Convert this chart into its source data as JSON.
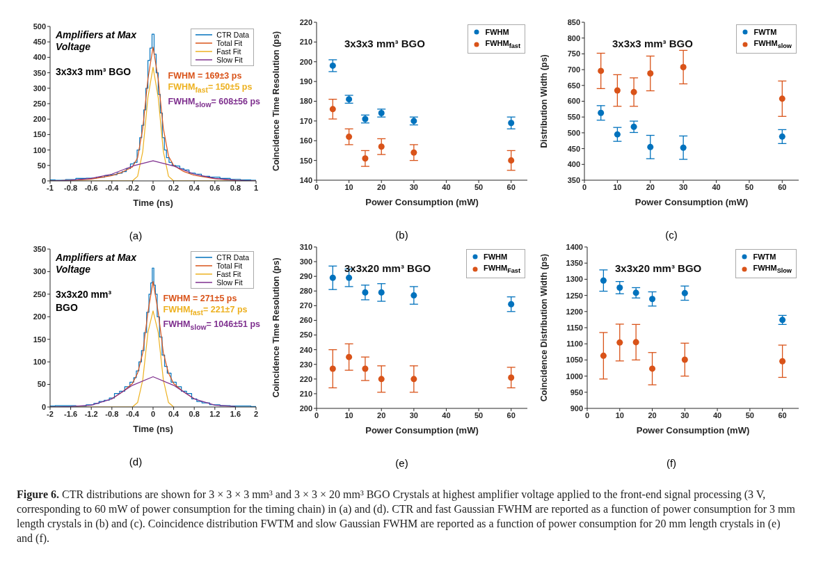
{
  "chart_data": [
    {
      "type": "line",
      "xlabel": "Time (ns)",
      "xlim": [
        -1,
        1
      ],
      "xticks": [
        -1,
        -0.8,
        -0.6,
        -0.4,
        -0.2,
        0,
        0.2,
        0.4,
        0.6,
        0.8,
        1
      ],
      "ylim": [
        0,
        500
      ],
      "yticks": [
        0,
        50,
        100,
        150,
        200,
        250,
        300,
        350,
        400,
        450,
        500
      ],
      "legend": "top right",
      "annotations": [
        "(a)",
        "Amplifiers at Max Voltage",
        "3x3x3 mm³ BGO",
        "FWHM = 169±3 ps",
        "FWHM$_{fast}$= 150±5 ps",
        "FWHM$_{slow}$= 608±56 ps"
      ],
      "series": [
        {
          "name": "CTR Data",
          "type": "step",
          "color": "#0072bd",
          "x": [
            -1,
            -0.9,
            -0.8,
            -0.7,
            -0.6,
            -0.5,
            -0.44,
            -0.38,
            -0.32,
            -0.28,
            -0.24,
            -0.2,
            -0.17,
            -0.14,
            -0.12,
            -0.1,
            -0.08,
            -0.06,
            -0.04,
            -0.02,
            0,
            0.02,
            0.04,
            0.06,
            0.08,
            0.1,
            0.12,
            0.14,
            0.17,
            0.2,
            0.24,
            0.28,
            0.32,
            0.38,
            0.44,
            0.5,
            0.6,
            0.7,
            0.8,
            0.9,
            1
          ],
          "values": [
            3,
            2,
            4,
            8,
            9,
            12,
            17,
            20,
            25,
            30,
            40,
            55,
            60,
            100,
            140,
            180,
            230,
            300,
            390,
            430,
            475,
            410,
            350,
            280,
            220,
            140,
            100,
            75,
            60,
            50,
            48,
            40,
            35,
            25,
            22,
            15,
            12,
            8,
            5,
            3,
            2
          ]
        },
        {
          "name": "Total Fit",
          "color": "#d95319",
          "x": [
            -1,
            -0.8,
            -0.6,
            -0.4,
            -0.3,
            -0.2,
            -0.15,
            -0.1,
            -0.05,
            0,
            0.05,
            0.1,
            0.15,
            0.2,
            0.3,
            0.4,
            0.6,
            0.8,
            1
          ],
          "values": [
            0,
            2,
            6,
            17,
            28,
            45,
            75,
            170,
            330,
            433,
            330,
            170,
            80,
            50,
            30,
            18,
            7,
            2,
            0
          ]
        },
        {
          "name": "Fast Fit",
          "color": "#edb120",
          "x": [
            -1,
            -0.2,
            -0.15,
            -0.1,
            -0.05,
            0,
            0.05,
            0.1,
            0.15,
            0.2,
            1
          ],
          "values": [
            0,
            0,
            15,
            95,
            270,
            368,
            270,
            95,
            15,
            0,
            0
          ]
        },
        {
          "name": "Slow Fit",
          "color": "#7e2f8e",
          "x": [
            -1,
            -0.8,
            -0.6,
            -0.4,
            -0.2,
            0,
            0.2,
            0.4,
            0.6,
            0.8,
            1
          ],
          "values": [
            0,
            2,
            8,
            22,
            48,
            65,
            48,
            22,
            8,
            2,
            0
          ]
        }
      ]
    },
    {
      "type": "scatter",
      "title": "3x3x3 mm³ BGO",
      "xlabel": "Power Consumption (mW)",
      "ylabel": "Coincidence Time Resolution (ps)",
      "xlim": [
        0,
        65
      ],
      "xticks": [
        0,
        10,
        20,
        30,
        40,
        50,
        60
      ],
      "ylim": [
        140,
        220
      ],
      "yticks": [
        140,
        150,
        160,
        170,
        180,
        190,
        200,
        210,
        220
      ],
      "legend": "top right",
      "marker": "circle",
      "x": [
        5,
        10,
        15,
        20,
        30,
        60
      ],
      "annotations": [
        "(b)"
      ],
      "series": [
        {
          "name": "FWHM",
          "color": "#0072bd",
          "values": [
            198,
            181,
            171,
            174,
            170,
            169
          ],
          "errors": [
            3,
            2,
            2,
            2,
            2,
            3
          ]
        },
        {
          "name": "FWHM$_{fast}$",
          "color": "#d95319",
          "values": [
            176,
            162,
            151,
            157,
            154,
            150
          ],
          "errors": [
            5,
            4,
            4,
            4,
            4,
            5
          ]
        }
      ]
    },
    {
      "type": "scatter",
      "title": "3x3x3 mm³ BGO",
      "xlabel": "Power Consumption (mW)",
      "ylabel": "Distribution Width (ps)",
      "xlim": [
        0,
        65
      ],
      "xticks": [
        0,
        10,
        20,
        30,
        40,
        50,
        60
      ],
      "ylim": [
        350,
        850
      ],
      "yticks": [
        350,
        400,
        450,
        500,
        550,
        600,
        650,
        700,
        750,
        800,
        850
      ],
      "legend": "top right",
      "marker": "circle",
      "x": [
        5,
        10,
        15,
        20,
        30,
        60
      ],
      "annotations": [
        "(c)"
      ],
      "series": [
        {
          "name": "FWTM",
          "color": "#0072bd",
          "values": [
            563,
            495,
            519,
            455,
            453,
            488
          ],
          "errors": [
            23,
            22,
            18,
            37,
            37,
            22
          ]
        },
        {
          "name": "FWHM$_{slow}$",
          "color": "#d95319",
          "values": [
            696,
            634,
            629,
            688,
            708,
            608
          ],
          "errors": [
            56,
            50,
            45,
            55,
            53,
            56
          ]
        }
      ]
    },
    {
      "type": "line",
      "xlabel": "Time (ns)",
      "xlim": [
        -2,
        2
      ],
      "xticks": [
        -2,
        -1.6,
        -1.2,
        -0.8,
        -0.4,
        0,
        0.4,
        0.8,
        1.2,
        1.6,
        2
      ],
      "ylim": [
        0,
        350
      ],
      "yticks": [
        0,
        50,
        100,
        150,
        200,
        250,
        300,
        350
      ],
      "legend": "top right",
      "annotations": [
        "(d)",
        "Amplifiers at Max Voltage",
        "3x3x20 mm³ BGO",
        "FWHM = 271±5 ps",
        "FWHM$_{fast}$= 221±7 ps",
        "FWHM$_{slow}$= 1046±51 ps"
      ],
      "series": [
        {
          "name": "CTR Data",
          "type": "step",
          "color": "#0072bd",
          "x": [
            -2,
            -1.8,
            -1.6,
            -1.4,
            -1.2,
            -1.1,
            -1,
            -0.9,
            -0.8,
            -0.7,
            -0.6,
            -0.5,
            -0.4,
            -0.35,
            -0.3,
            -0.25,
            -0.2,
            -0.15,
            -0.1,
            -0.06,
            -0.03,
            0,
            0.03,
            0.06,
            0.1,
            0.15,
            0.2,
            0.25,
            0.3,
            0.4,
            0.5,
            0.6,
            0.7,
            0.8,
            0.9,
            1,
            1.2,
            1.4,
            1.6,
            1.8,
            2
          ],
          "values": [
            2,
            3,
            3,
            2,
            5,
            8,
            12,
            15,
            20,
            30,
            35,
            45,
            55,
            65,
            80,
            100,
            125,
            165,
            210,
            250,
            275,
            308,
            270,
            250,
            200,
            155,
            115,
            90,
            75,
            55,
            45,
            35,
            30,
            18,
            12,
            9,
            5,
            3,
            2,
            2,
            1
          ]
        },
        {
          "name": "Total Fit",
          "color": "#d95319",
          "x": [
            -0.8,
            -0.6,
            -0.4,
            -0.3,
            -0.2,
            -0.1,
            0,
            0.1,
            0.2,
            0.3,
            0.4,
            0.6,
            0.8
          ],
          "values": [
            18,
            33,
            52,
            75,
            120,
            210,
            278,
            210,
            120,
            75,
            52,
            33,
            18
          ]
        },
        {
          "name": "Fast Fit",
          "color": "#edb120",
          "x": [
            -2,
            -0.4,
            -0.3,
            -0.2,
            -0.1,
            0,
            0.1,
            0.2,
            0.3,
            0.4
          ],
          "values": [
            0,
            0,
            10,
            60,
            165,
            213,
            165,
            60,
            10,
            0
          ]
        },
        {
          "name": "Slow Fit",
          "color": "#7e2f8e",
          "x": [
            -2,
            -1.6,
            -1.2,
            -0.8,
            -0.4,
            0,
            0.4,
            0.8,
            1.2,
            1.6
          ],
          "values": [
            0,
            1,
            4,
            18,
            48,
            67,
            48,
            18,
            4,
            1
          ]
        }
      ]
    },
    {
      "type": "scatter",
      "title": "3x3x20 mm³ BGO",
      "xlabel": "Power Consumption (mW)",
      "ylabel": "Coincidence Time Resolution (ps)",
      "xlim": [
        0,
        65
      ],
      "xticks": [
        0,
        10,
        20,
        30,
        40,
        50,
        60
      ],
      "ylim": [
        200,
        310
      ],
      "yticks": [
        200,
        210,
        220,
        230,
        240,
        250,
        260,
        270,
        280,
        290,
        300,
        310
      ],
      "legend": "top right",
      "marker": "circle",
      "x": [
        5,
        10,
        15,
        20,
        30,
        60
      ],
      "annotations": [
        "(e)"
      ],
      "series": [
        {
          "name": "FWHM",
          "color": "#0072bd",
          "values": [
            289,
            289,
            279,
            279,
            277,
            271
          ],
          "errors": [
            8,
            6,
            5,
            6,
            6,
            5
          ]
        },
        {
          "name": "FWHM$_{Fast}$",
          "color": "#d95319",
          "values": [
            227,
            235,
            227,
            220,
            220,
            221
          ],
          "errors": [
            13,
            9,
            8,
            9,
            9,
            7
          ]
        }
      ]
    },
    {
      "type": "scatter",
      "title": "3x3x20 mm³ BGO",
      "xlabel": "Power Consumption (mW)",
      "ylabel": "Coincidence Distribution Width (ps)",
      "xlim": [
        0,
        65
      ],
      "xticks": [
        0,
        10,
        20,
        30,
        40,
        50,
        60
      ],
      "ylim": [
        900,
        1400
      ],
      "yticks": [
        900,
        950,
        1000,
        1050,
        1100,
        1150,
        1200,
        1250,
        1300,
        1350,
        1400
      ],
      "legend": "top right",
      "marker": "circle",
      "x": [
        5,
        10,
        15,
        20,
        30,
        60
      ],
      "annotations": [
        "(f)",
        "Figure 6.",
        "CTR distributions are shown for 3 × 3 × 3 mm³ and 3 × 3 × 20 mm³ BGO Crystals at highest amplifier voltage applied to the front-end signal processing (3 V, corresponding to 60 mW of power consumption for the timing chain) in (a) and (d). CTR and fast Gaussian FWHM are reported as a function of power consumption for 3 mm length crystals in (b) and (c). Coincidence distribution FWTM and slow Gaussian FWHM are reported as a function of power consumption for 20 mm length crystals in (e) and (f)."
      ],
      "series": [
        {
          "name": "FWTM",
          "color": "#0072bd",
          "values": [
            1296,
            1274,
            1258,
            1239,
            1257,
            1174
          ],
          "errors": [
            33,
            19,
            16,
            22,
            22,
            14
          ]
        },
        {
          "name": "FWHM$_{Slow}$",
          "color": "#d95319",
          "values": [
            1063,
            1104,
            1105,
            1023,
            1051,
            1046
          ],
          "errors": [
            72,
            57,
            55,
            50,
            51,
            50
          ]
        }
      ]
    }
  ]
}
